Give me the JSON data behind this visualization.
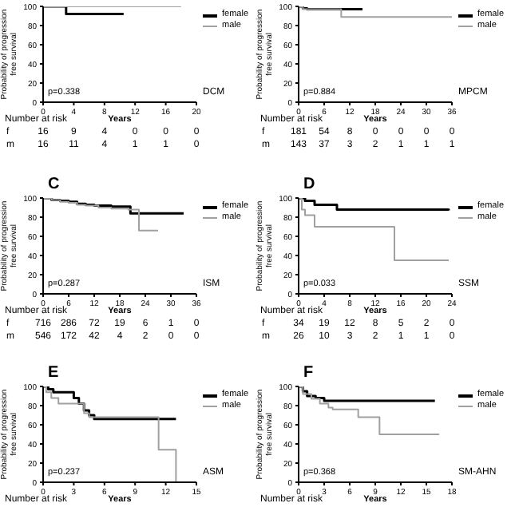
{
  "chart_data": [
    {
      "type": "step",
      "xlabel": "Years",
      "ylabel": "Probability of progression free survival",
      "xlim": [
        0,
        20
      ],
      "xticks": [
        0,
        4,
        8,
        12,
        16,
        20
      ],
      "ylim": [
        0,
        100
      ],
      "yticks": [
        0,
        20,
        40,
        60,
        80,
        100
      ],
      "legend": "top right",
      "annotations": [
        "p=0.338",
        "DCM",
        "Number at risk",
        "f",
        "16 9 4 0 0 0",
        "m",
        "16 11 4 1 1 0"
      ],
      "series": [
        {
          "name": "female",
          "color": "#000000",
          "x": [
            0,
            3,
            10.5
          ],
          "values": [
            100,
            92,
            92
          ]
        },
        {
          "name": "male",
          "color": "#a0a0a0",
          "x": [
            0,
            18
          ],
          "values": [
            100,
            100
          ]
        }
      ]
    },
    {
      "type": "step",
      "xlabel": "Years",
      "ylabel": "Probability of progression free survival",
      "xlim": [
        0,
        36
      ],
      "xticks": [
        0,
        6,
        12,
        18,
        24,
        30,
        36
      ],
      "ylim": [
        0,
        100
      ],
      "yticks": [
        0,
        20,
        40,
        60,
        80,
        100
      ],
      "legend": "top right",
      "annotations": [
        "p=0.884",
        "MPCM",
        "Number at risk",
        "f",
        "181 54 8 0 0 0 0",
        "m",
        "143 37 3 2 1 1 1"
      ],
      "series": [
        {
          "name": "female",
          "color": "#000000",
          "x": [
            0,
            1,
            2,
            15
          ],
          "values": [
            100,
            98,
            97,
            97
          ]
        },
        {
          "name": "male",
          "color": "#a0a0a0",
          "x": [
            0,
            1,
            10,
            36
          ],
          "values": [
            100,
            97,
            89,
            89
          ]
        }
      ]
    },
    {
      "type": "step",
      "title": "C",
      "xlabel": "Years",
      "ylabel": "Probability of progression free survival",
      "xlim": [
        0,
        36
      ],
      "xticks": [
        0,
        6,
        12,
        18,
        24,
        30,
        36
      ],
      "ylim": [
        0,
        100
      ],
      "yticks": [
        0,
        20,
        40,
        60,
        80,
        100
      ],
      "legend": "top right",
      "annotations": [
        "p=0.287",
        "ISM",
        "Number at risk",
        "f",
        "716 286 72 19 6 1 0",
        "m",
        "546 172 42 4 2 0 0"
      ],
      "series": [
        {
          "name": "female",
          "color": "#000000",
          "x": [
            0,
            2,
            4,
            6,
            8,
            10,
            12,
            14,
            16,
            18,
            20.5,
            33
          ],
          "values": [
            100,
            98,
            97,
            96,
            94,
            93,
            92,
            92,
            91,
            91,
            84,
            84
          ]
        },
        {
          "name": "male",
          "color": "#a0a0a0",
          "x": [
            0,
            2,
            4,
            6,
            8,
            10,
            13,
            16,
            20,
            22.5,
            27
          ],
          "values": [
            100,
            98,
            96,
            95,
            93,
            92,
            90,
            89,
            88,
            66,
            66
          ]
        }
      ]
    },
    {
      "type": "step",
      "title": "D",
      "xlabel": "Years",
      "ylabel": "Probability of progression free survival",
      "xlim": [
        0,
        24
      ],
      "xticks": [
        0,
        4,
        8,
        12,
        16,
        20,
        24
      ],
      "ylim": [
        0,
        100
      ],
      "yticks": [
        0,
        20,
        40,
        60,
        80,
        100
      ],
      "legend": "top right",
      "annotations": [
        "p=0.033",
        "SSM",
        "Number at risk",
        "f",
        "34 19 12 8 5 2 0",
        "m",
        "26 10 3 2 1 1 0"
      ],
      "series": [
        {
          "name": "female",
          "color": "#000000",
          "x": [
            0,
            1,
            2.5,
            6,
            23.5
          ],
          "values": [
            100,
            97,
            93,
            88,
            87
          ]
        },
        {
          "name": "male",
          "color": "#a0a0a0",
          "x": [
            0,
            0.5,
            1,
            2.5,
            15,
            23.5
          ],
          "values": [
            100,
            88,
            82,
            70,
            35,
            35
          ]
        }
      ]
    },
    {
      "type": "step",
      "title": "E",
      "xlabel": "Years",
      "ylabel": "Probability of progression free survival",
      "xlim": [
        0,
        15
      ],
      "xticks": [
        0,
        3,
        6,
        9,
        12,
        15
      ],
      "ylim": [
        0,
        100
      ],
      "yticks": [
        0,
        20,
        40,
        60,
        80,
        100
      ],
      "legend": "top right",
      "annotations": [
        "p=0.237",
        "ASM",
        "Number at risk"
      ],
      "series": [
        {
          "name": "female",
          "color": "#000000",
          "x": [
            0,
            0.5,
            1,
            3,
            3.5,
            4,
            4.5,
            5,
            13
          ],
          "values": [
            100,
            97,
            94,
            88,
            82,
            75,
            70,
            66,
            66
          ]
        },
        {
          "name": "male",
          "color": "#a0a0a0",
          "x": [
            0,
            0.3,
            0.8,
            1.5,
            4,
            4.5,
            11.3,
            13
          ],
          "values": [
            100,
            94,
            88,
            82,
            72,
            68,
            34,
            0
          ]
        }
      ]
    },
    {
      "type": "step",
      "title": "F",
      "xlabel": "Years",
      "ylabel": "Probability of progression free survival",
      "xlim": [
        0,
        18
      ],
      "xticks": [
        0,
        3,
        6,
        9,
        12,
        15,
        18
      ],
      "ylim": [
        0,
        100
      ],
      "yticks": [
        0,
        20,
        40,
        60,
        80,
        100
      ],
      "legend": "top right",
      "annotations": [
        "p=0.368",
        "SM-AHN",
        "Number at risk"
      ],
      "series": [
        {
          "name": "female",
          "color": "#000000",
          "x": [
            0,
            0.5,
            1,
            2,
            3,
            16
          ],
          "values": [
            100,
            95,
            90,
            88,
            85,
            85
          ]
        },
        {
          "name": "male",
          "color": "#a0a0a0",
          "x": [
            0,
            0.5,
            1.5,
            2.5,
            3.5,
            4,
            7,
            9.5,
            16.5
          ],
          "values": [
            100,
            92,
            87,
            82,
            78,
            76,
            68,
            50,
            50
          ]
        }
      ]
    }
  ]
}
